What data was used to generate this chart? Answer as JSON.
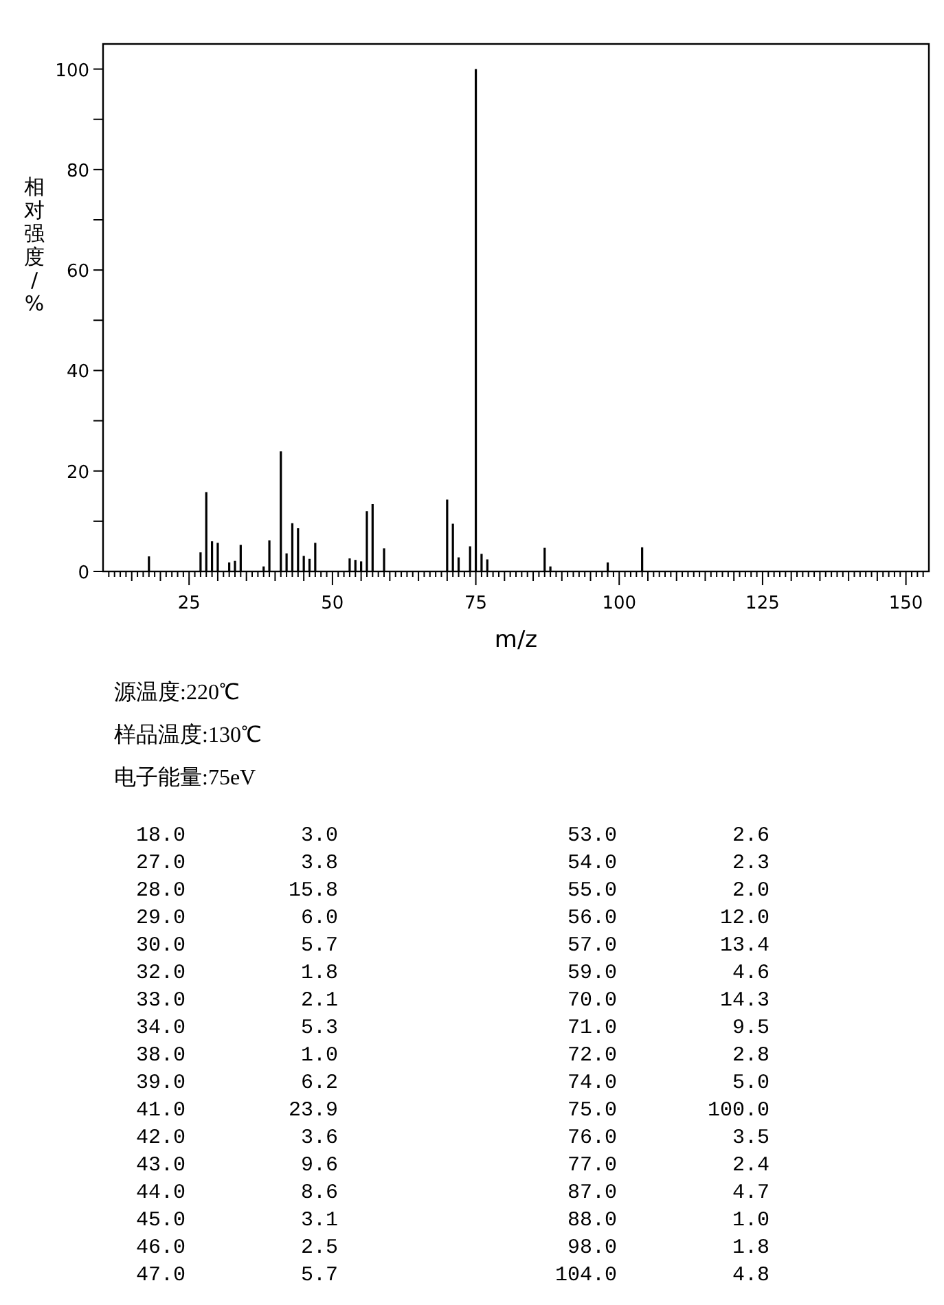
{
  "chart_data": [
    {
      "type": "bar",
      "xlabel": "m/z",
      "ylabel": "相对强度/%",
      "color": "#000000",
      "annotations": [
        "源温度:220℃",
        "样品温度:130℃",
        "电子能量:75eV"
      ],
      "x": [
        18,
        27,
        28,
        29,
        30,
        32,
        33,
        34,
        38,
        39,
        41,
        42,
        43,
        44,
        45,
        46,
        47,
        53,
        54,
        55,
        56,
        57,
        59,
        70,
        71,
        72,
        74,
        75,
        76,
        77,
        87,
        88,
        98,
        104
      ],
      "values": [
        3.0,
        3.8,
        15.8,
        6.0,
        5.7,
        1.8,
        2.1,
        5.3,
        1.0,
        6.2,
        23.9,
        3.6,
        9.6,
        8.6,
        3.1,
        2.5,
        5.7,
        2.6,
        2.3,
        2.0,
        12.0,
        13.4,
        4.6,
        14.3,
        9.5,
        2.8,
        5.0,
        100.0,
        3.5,
        2.4,
        4.7,
        1.0,
        1.8,
        4.8
      ],
      "xlim": [
        10,
        154
      ],
      "ylim": [
        0,
        105
      ],
      "yticks": [
        0,
        {
          "value": 10,
          "label": null
        },
        20,
        {
          "value": 30,
          "label": null
        },
        40,
        {
          "value": 50,
          "label": null
        },
        60,
        {
          "value": 70,
          "label": null
        },
        80,
        {
          "value": 90,
          "label": null
        },
        100
      ],
      "xticks": [
        {
          "value": 11,
          "label": null
        },
        {
          "value": 12,
          "label": null
        },
        {
          "value": 13,
          "label": null
        },
        {
          "value": 14,
          "label": null
        },
        {
          "value": 15,
          "label": null
        },
        {
          "value": 16,
          "label": null
        },
        {
          "value": 17,
          "label": null
        },
        {
          "value": 18,
          "label": null
        },
        {
          "value": 19,
          "label": null
        },
        {
          "value": 20,
          "label": null
        },
        {
          "value": 21,
          "label": null
        },
        {
          "value": 22,
          "label": null
        },
        {
          "value": 23,
          "label": null
        },
        {
          "value": 24,
          "label": null
        },
        25,
        {
          "value": 26,
          "label": null
        },
        {
          "value": 27,
          "label": null
        },
        {
          "value": 28,
          "label": null
        },
        {
          "value": 29,
          "label": null
        },
        {
          "value": 30,
          "label": null
        },
        {
          "value": 31,
          "label": null
        },
        {
          "value": 32,
          "label": null
        },
        {
          "value": 33,
          "label": null
        },
        {
          "value": 34,
          "label": null
        },
        {
          "value": 35,
          "label": null
        },
        {
          "value": 36,
          "label": null
        },
        {
          "value": 37,
          "label": null
        },
        {
          "value": 38,
          "label": null
        },
        {
          "value": 39,
          "label": null
        },
        {
          "value": 40,
          "label": null
        },
        {
          "value": 41,
          "label": null
        },
        {
          "value": 42,
          "label": null
        },
        {
          "value": 43,
          "label": null
        },
        {
          "value": 44,
          "label": null
        },
        {
          "value": 45,
          "label": null
        },
        {
          "value": 46,
          "label": null
        },
        {
          "value": 47,
          "label": null
        },
        {
          "value": 48,
          "label": null
        },
        {
          "value": 49,
          "label": null
        },
        50,
        {
          "value": 51,
          "label": null
        },
        {
          "value": 52,
          "label": null
        },
        {
          "value": 53,
          "label": null
        },
        {
          "value": 54,
          "label": null
        },
        {
          "value": 55,
          "label": null
        },
        {
          "value": 56,
          "label": null
        },
        {
          "value": 57,
          "label": null
        },
        {
          "value": 58,
          "label": null
        },
        {
          "value": 59,
          "label": null
        },
        {
          "value": 60,
          "label": null
        },
        {
          "value": 61,
          "label": null
        },
        {
          "value": 62,
          "label": null
        },
        {
          "value": 63,
          "label": null
        },
        {
          "value": 64,
          "label": null
        },
        {
          "value": 65,
          "label": null
        },
        {
          "value": 66,
          "label": null
        },
        {
          "value": 67,
          "label": null
        },
        {
          "value": 68,
          "label": null
        },
        {
          "value": 69,
          "label": null
        },
        {
          "value": 70,
          "label": null
        },
        {
          "value": 71,
          "label": null
        },
        {
          "value": 72,
          "label": null
        },
        {
          "value": 73,
          "label": null
        },
        {
          "value": 74,
          "label": null
        },
        75,
        {
          "value": 76,
          "label": null
        },
        {
          "value": 77,
          "label": null
        },
        {
          "value": 78,
          "label": null
        },
        {
          "value": 79,
          "label": null
        },
        {
          "value": 80,
          "label": null
        },
        {
          "value": 81,
          "label": null
        },
        {
          "value": 82,
          "label": null
        },
        {
          "value": 83,
          "label": null
        },
        {
          "value": 84,
          "label": null
        },
        {
          "value": 85,
          "label": null
        },
        {
          "value": 86,
          "label": null
        },
        {
          "value": 87,
          "label": null
        },
        {
          "value": 88,
          "label": null
        },
        {
          "value": 89,
          "label": null
        },
        {
          "value": 90,
          "label": null
        },
        {
          "value": 91,
          "label": null
        },
        {
          "value": 92,
          "label": null
        },
        {
          "value": 93,
          "label": null
        },
        {
          "value": 94,
          "label": null
        },
        {
          "value": 95,
          "label": null
        },
        {
          "value": 96,
          "label": null
        },
        {
          "value": 97,
          "label": null
        },
        {
          "value": 98,
          "label": null
        },
        {
          "value": 99,
          "label": null
        },
        100,
        {
          "value": 101,
          "label": null
        },
        {
          "value": 102,
          "label": null
        },
        {
          "value": 103,
          "label": null
        },
        {
          "value": 104,
          "label": null
        },
        {
          "value": 105,
          "label": null
        },
        {
          "value": 106,
          "label": null
        },
        {
          "value": 107,
          "label": null
        },
        {
          "value": 108,
          "label": null
        },
        {
          "value": 109,
          "label": null
        },
        {
          "value": 110,
          "label": null
        },
        {
          "value": 111,
          "label": null
        },
        {
          "value": 112,
          "label": null
        },
        {
          "value": 113,
          "label": null
        },
        {
          "value": 114,
          "label": null
        },
        {
          "value": 115,
          "label": null
        },
        {
          "value": 116,
          "label": null
        },
        {
          "value": 117,
          "label": null
        },
        {
          "value": 118,
          "label": null
        },
        {
          "value": 119,
          "label": null
        },
        {
          "value": 120,
          "label": null
        },
        {
          "value": 121,
          "label": null
        },
        {
          "value": 122,
          "label": null
        },
        {
          "value": 123,
          "label": null
        },
        {
          "value": 124,
          "label": null
        },
        125,
        {
          "value": 126,
          "label": null
        },
        {
          "value": 127,
          "label": null
        },
        {
          "value": 128,
          "label": null
        },
        {
          "value": 129,
          "label": null
        },
        {
          "value": 130,
          "label": null
        },
        {
          "value": 131,
          "label": null
        },
        {
          "value": 132,
          "label": null
        },
        {
          "value": 133,
          "label": null
        },
        {
          "value": 134,
          "label": null
        },
        {
          "value": 135,
          "label": null
        },
        {
          "value": 136,
          "label": null
        },
        {
          "value": 137,
          "label": null
        },
        {
          "value": 138,
          "label": null
        },
        {
          "value": 139,
          "label": null
        },
        {
          "value": 140,
          "label": null
        },
        {
          "value": 141,
          "label": null
        },
        {
          "value": 142,
          "label": null
        },
        {
          "value": 143,
          "label": null
        },
        {
          "value": 144,
          "label": null
        },
        {
          "value": 145,
          "label": null
        },
        {
          "value": 146,
          "label": null
        },
        {
          "value": 147,
          "label": null
        },
        {
          "value": 148,
          "label": null
        },
        {
          "value": 149,
          "label": null
        },
        150,
        {
          "value": 151,
          "label": null
        },
        {
          "value": 152,
          "label": null
        },
        {
          "value": 153,
          "label": null
        }
      ]
    },
    {
      "type": "other",
      "categories": [
        "18.0",
        "27.0",
        "28.0",
        "29.0",
        "30.0",
        "32.0",
        "33.0",
        "34.0",
        "38.0",
        "39.0",
        "41.0",
        "42.0",
        "43.0",
        "44.0",
        "45.0",
        "46.0",
        "47.0",
        "53.0",
        "54.0",
        "55.0",
        "56.0",
        "57.0",
        "59.0",
        "70.0",
        "71.0",
        "72.0",
        "74.0",
        "75.0",
        "76.0",
        "77.0",
        "87.0",
        "88.0",
        "98.0",
        "104.0"
      ],
      "value_labels": [
        "3.0",
        "3.8",
        "15.8",
        "6.0",
        "5.7",
        "1.8",
        "2.1",
        "5.3",
        "1.0",
        "6.2",
        "23.9",
        "3.6",
        "9.6",
        "8.6",
        "3.1",
        "2.5",
        "5.7",
        "2.6",
        "2.3",
        "2.0",
        "12.0",
        "13.4",
        "4.6",
        "14.3",
        "9.5",
        "2.8",
        "5.0",
        "100.0",
        "3.5",
        "2.4",
        "4.7",
        "1.0",
        "1.8",
        "4.8"
      ],
      "values": [
        3.0,
        3.8,
        15.8,
        6.0,
        5.7,
        1.8,
        2.1,
        5.3,
        1.0,
        6.2,
        23.9,
        3.6,
        9.6,
        8.6,
        3.1,
        2.5,
        5.7,
        2.6,
        2.3,
        2.0,
        12.0,
        13.4,
        4.6,
        14.3,
        9.5,
        2.8,
        5.0,
        100.0,
        3.5,
        2.4,
        4.7,
        1.0,
        1.8,
        4.8
      ]
    }
  ]
}
